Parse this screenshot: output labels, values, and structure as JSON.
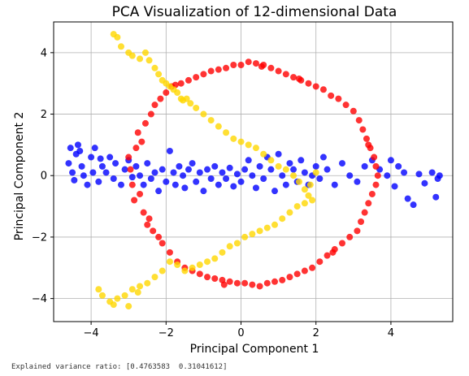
{
  "chart_data": {
    "type": "scatter",
    "title": "PCA Visualization of 12-dimensional Data",
    "xlabel": "Principal Component 1",
    "ylabel": "Principal Component 2",
    "xlim": [
      -5.0,
      5.65
    ],
    "ylim": [
      -4.75,
      5.0
    ],
    "xticks": [
      -4,
      -2,
      0,
      2,
      4
    ],
    "yticks": [
      -4,
      -2,
      0,
      2,
      4
    ],
    "xtick_labels": [
      "−4",
      "−2",
      "0",
      "2",
      "4"
    ],
    "ytick_labels": [
      "−4",
      "−2",
      "0",
      "2",
      "4"
    ],
    "grid": true,
    "series": [
      {
        "color": "#0000ff",
        "points": [
          [
            -4.6,
            0.4
          ],
          [
            -4.55,
            0.9
          ],
          [
            -4.5,
            0.1
          ],
          [
            -4.45,
            -0.15
          ],
          [
            -4.4,
            0.7
          ],
          [
            -4.35,
            1.0
          ],
          [
            -4.3,
            0.8
          ],
          [
            -4.25,
            0.3
          ],
          [
            -4.2,
            0.0
          ],
          [
            -4.1,
            -0.3
          ],
          [
            -4.0,
            0.6
          ],
          [
            -3.95,
            0.1
          ],
          [
            -3.9,
            0.9
          ],
          [
            -3.8,
            -0.2
          ],
          [
            -3.75,
            0.55
          ],
          [
            -3.7,
            0.3
          ],
          [
            -3.6,
            0.1
          ],
          [
            -3.5,
            0.6
          ],
          [
            -3.4,
            -0.1
          ],
          [
            -3.35,
            0.4
          ],
          [
            -3.2,
            -0.3
          ],
          [
            -3.1,
            0.2
          ],
          [
            -3.0,
            0.5
          ],
          [
            -2.9,
            -0.05
          ],
          [
            -2.8,
            0.3
          ],
          [
            -2.7,
            0.0
          ],
          [
            -2.6,
            -0.3
          ],
          [
            -2.5,
            0.4
          ],
          [
            -2.4,
            -0.1
          ],
          [
            -2.3,
            0.1
          ],
          [
            -2.2,
            -0.5
          ],
          [
            -2.1,
            0.2
          ],
          [
            -2.0,
            -0.2
          ],
          [
            -1.9,
            0.8
          ],
          [
            -1.8,
            0.1
          ],
          [
            -1.75,
            -0.3
          ],
          [
            -1.65,
            0.3
          ],
          [
            -1.55,
            0.0
          ],
          [
            -1.5,
            -0.4
          ],
          [
            -1.4,
            0.2
          ],
          [
            -1.3,
            0.4
          ],
          [
            -1.2,
            -0.2
          ],
          [
            -1.1,
            0.1
          ],
          [
            -1.0,
            -0.5
          ],
          [
            -0.9,
            0.2
          ],
          [
            -0.8,
            -0.1
          ],
          [
            -0.7,
            0.3
          ],
          [
            -0.6,
            -0.3
          ],
          [
            -0.5,
            0.1
          ],
          [
            -0.4,
            -0.1
          ],
          [
            -0.3,
            0.25
          ],
          [
            -0.2,
            -0.35
          ],
          [
            -0.1,
            0.05
          ],
          [
            0.0,
            -0.2
          ],
          [
            0.1,
            0.2
          ],
          [
            0.2,
            0.5
          ],
          [
            0.3,
            0.0
          ],
          [
            0.4,
            -0.4
          ],
          [
            0.5,
            0.3
          ],
          [
            0.6,
            -0.1
          ],
          [
            0.7,
            0.6
          ],
          [
            0.8,
            0.2
          ],
          [
            0.9,
            -0.5
          ],
          [
            1.0,
            0.7
          ],
          [
            1.1,
            0.0
          ],
          [
            1.2,
            -0.3
          ],
          [
            1.3,
            0.4
          ],
          [
            1.4,
            0.2
          ],
          [
            1.5,
            -0.2
          ],
          [
            1.6,
            0.5
          ],
          [
            1.7,
            0.1
          ],
          [
            1.8,
            -0.3
          ],
          [
            1.9,
            0.0
          ],
          [
            2.0,
            0.3
          ],
          [
            2.1,
            -0.1
          ],
          [
            2.2,
            0.6
          ],
          [
            2.3,
            0.2
          ],
          [
            2.5,
            -0.3
          ],
          [
            2.7,
            0.4
          ],
          [
            2.9,
            0.0
          ],
          [
            3.1,
            -0.2
          ],
          [
            3.3,
            0.3
          ],
          [
            3.5,
            0.5
          ],
          [
            3.7,
            0.2
          ],
          [
            3.9,
            0.0
          ],
          [
            4.0,
            0.5
          ],
          [
            4.1,
            -0.35
          ],
          [
            4.2,
            0.3
          ],
          [
            4.35,
            0.1
          ],
          [
            4.45,
            -0.75
          ],
          [
            4.6,
            -0.95
          ],
          [
            4.75,
            0.05
          ],
          [
            4.9,
            -0.25
          ],
          [
            5.1,
            0.1
          ],
          [
            5.25,
            -0.1
          ],
          [
            5.3,
            0.0
          ],
          [
            5.2,
            -0.7
          ]
        ]
      },
      {
        "color": "#ff0000",
        "points": [
          [
            -3.0,
            0.6
          ],
          [
            -2.95,
            0.2
          ],
          [
            -2.9,
            -0.3
          ],
          [
            -2.85,
            -0.8
          ],
          [
            -2.8,
            0.9
          ],
          [
            -2.75,
            1.4
          ],
          [
            -2.6,
            -1.2
          ],
          [
            -2.55,
            1.7
          ],
          [
            -2.45,
            -1.4
          ],
          [
            -2.4,
            2.0
          ],
          [
            -2.35,
            -1.8
          ],
          [
            -2.3,
            2.3
          ],
          [
            -2.2,
            -2.0
          ],
          [
            -2.15,
            2.5
          ],
          [
            -2.1,
            -2.2
          ],
          [
            -2.0,
            2.7
          ],
          [
            -1.9,
            -2.5
          ],
          [
            -1.85,
            2.9
          ],
          [
            -1.7,
            -2.8
          ],
          [
            -1.6,
            3.0
          ],
          [
            -1.5,
            -3.0
          ],
          [
            -1.4,
            3.1
          ],
          [
            -1.3,
            -3.1
          ],
          [
            -1.2,
            3.2
          ],
          [
            -1.1,
            -3.2
          ],
          [
            -1.0,
            3.3
          ],
          [
            -0.9,
            -3.3
          ],
          [
            -0.8,
            3.4
          ],
          [
            -0.7,
            -3.35
          ],
          [
            -0.6,
            3.45
          ],
          [
            -0.5,
            -3.4
          ],
          [
            -0.4,
            3.5
          ],
          [
            -0.3,
            -3.45
          ],
          [
            -0.2,
            3.6
          ],
          [
            -0.1,
            -3.5
          ],
          [
            0.0,
            3.6
          ],
          [
            0.1,
            -3.5
          ],
          [
            0.2,
            3.7
          ],
          [
            0.3,
            -3.55
          ],
          [
            0.4,
            3.65
          ],
          [
            0.5,
            -3.6
          ],
          [
            0.6,
            3.6
          ],
          [
            0.7,
            -3.5
          ],
          [
            0.8,
            3.5
          ],
          [
            0.9,
            -3.45
          ],
          [
            1.0,
            3.4
          ],
          [
            1.1,
            -3.4
          ],
          [
            1.2,
            3.3
          ],
          [
            1.3,
            -3.3
          ],
          [
            1.4,
            3.2
          ],
          [
            1.5,
            -3.2
          ],
          [
            1.6,
            3.1
          ],
          [
            1.7,
            -3.1
          ],
          [
            1.8,
            3.0
          ],
          [
            1.9,
            -3.0
          ],
          [
            2.0,
            2.9
          ],
          [
            2.1,
            -2.8
          ],
          [
            2.2,
            2.8
          ],
          [
            2.3,
            -2.6
          ],
          [
            2.4,
            2.6
          ],
          [
            2.5,
            -2.4
          ],
          [
            2.6,
            2.5
          ],
          [
            2.7,
            -2.2
          ],
          [
            2.8,
            2.3
          ],
          [
            2.9,
            -2.0
          ],
          [
            3.0,
            2.1
          ],
          [
            3.1,
            -1.8
          ],
          [
            3.15,
            1.8
          ],
          [
            3.2,
            -1.5
          ],
          [
            3.25,
            1.5
          ],
          [
            3.3,
            -1.2
          ],
          [
            3.35,
            1.2
          ],
          [
            3.4,
            -0.9
          ],
          [
            3.45,
            0.9
          ],
          [
            3.5,
            -0.6
          ],
          [
            3.55,
            0.6
          ],
          [
            3.6,
            -0.3
          ],
          [
            3.6,
            0.3
          ],
          [
            3.65,
            0.0
          ],
          [
            -2.7,
            -0.6
          ],
          [
            -2.5,
            -1.6
          ],
          [
            -2.65,
            1.1
          ],
          [
            -1.75,
            2.95
          ],
          [
            1.55,
            3.15
          ],
          [
            2.45,
            -2.5
          ],
          [
            3.4,
            1.0
          ],
          [
            -0.45,
            -3.55
          ],
          [
            0.55,
            3.55
          ]
        ]
      },
      {
        "color": "#ffd700",
        "points": [
          [
            -3.4,
            4.6
          ],
          [
            -3.3,
            4.5
          ],
          [
            -3.2,
            4.2
          ],
          [
            -3.0,
            4.0
          ],
          [
            -2.9,
            3.9
          ],
          [
            -2.7,
            3.8
          ],
          [
            -2.55,
            4.0
          ],
          [
            -2.45,
            3.75
          ],
          [
            -2.3,
            3.5
          ],
          [
            -2.2,
            3.3
          ],
          [
            -2.1,
            3.1
          ],
          [
            -2.0,
            3.0
          ],
          [
            -1.9,
            2.9
          ],
          [
            -1.8,
            2.8
          ],
          [
            -1.7,
            2.7
          ],
          [
            -1.6,
            2.5
          ],
          [
            -1.55,
            2.45
          ],
          [
            -1.45,
            2.5
          ],
          [
            -1.2,
            2.2
          ],
          [
            -1.0,
            2.0
          ],
          [
            -0.8,
            1.8
          ],
          [
            -0.6,
            1.6
          ],
          [
            -0.4,
            1.4
          ],
          [
            -0.2,
            1.2
          ],
          [
            0.0,
            1.1
          ],
          [
            0.2,
            1.0
          ],
          [
            0.4,
            0.9
          ],
          [
            0.6,
            0.7
          ],
          [
            0.8,
            0.5
          ],
          [
            1.0,
            0.3
          ],
          [
            1.2,
            0.2
          ],
          [
            1.4,
            0.0
          ],
          [
            1.55,
            -0.2
          ],
          [
            1.7,
            -0.45
          ],
          [
            1.8,
            -0.65
          ],
          [
            1.9,
            -0.8
          ],
          [
            1.7,
            -0.9
          ],
          [
            1.5,
            -1.0
          ],
          [
            1.3,
            -1.2
          ],
          [
            1.1,
            -1.4
          ],
          [
            0.9,
            -1.6
          ],
          [
            0.7,
            -1.7
          ],
          [
            0.5,
            -1.8
          ],
          [
            0.3,
            -1.9
          ],
          [
            0.1,
            -2.0
          ],
          [
            -0.1,
            -2.2
          ],
          [
            -0.3,
            -2.3
          ],
          [
            -0.5,
            -2.5
          ],
          [
            -0.7,
            -2.7
          ],
          [
            -0.9,
            -2.8
          ],
          [
            -1.1,
            -2.9
          ],
          [
            -1.3,
            -3.0
          ],
          [
            -1.5,
            -3.1
          ],
          [
            -1.7,
            -2.9
          ],
          [
            -1.9,
            -2.8
          ],
          [
            -2.1,
            -3.1
          ],
          [
            -2.3,
            -3.3
          ],
          [
            -2.5,
            -3.5
          ],
          [
            -2.7,
            -3.6
          ],
          [
            -2.9,
            -3.7
          ],
          [
            -3.1,
            -3.9
          ],
          [
            -3.3,
            -4.0
          ],
          [
            -3.5,
            -4.1
          ],
          [
            -3.7,
            -3.9
          ],
          [
            -3.8,
            -3.7
          ],
          [
            -3.4,
            -4.2
          ],
          [
            -3.0,
            -4.25
          ],
          [
            -2.75,
            -3.8
          ],
          [
            -1.35,
            2.35
          ],
          [
            1.85,
            -0.3
          ],
          [
            2.0,
            0.1
          ]
        ]
      }
    ]
  },
  "output": {
    "text": "Explained variance ratio: [0.4763583  0.31041612]"
  }
}
